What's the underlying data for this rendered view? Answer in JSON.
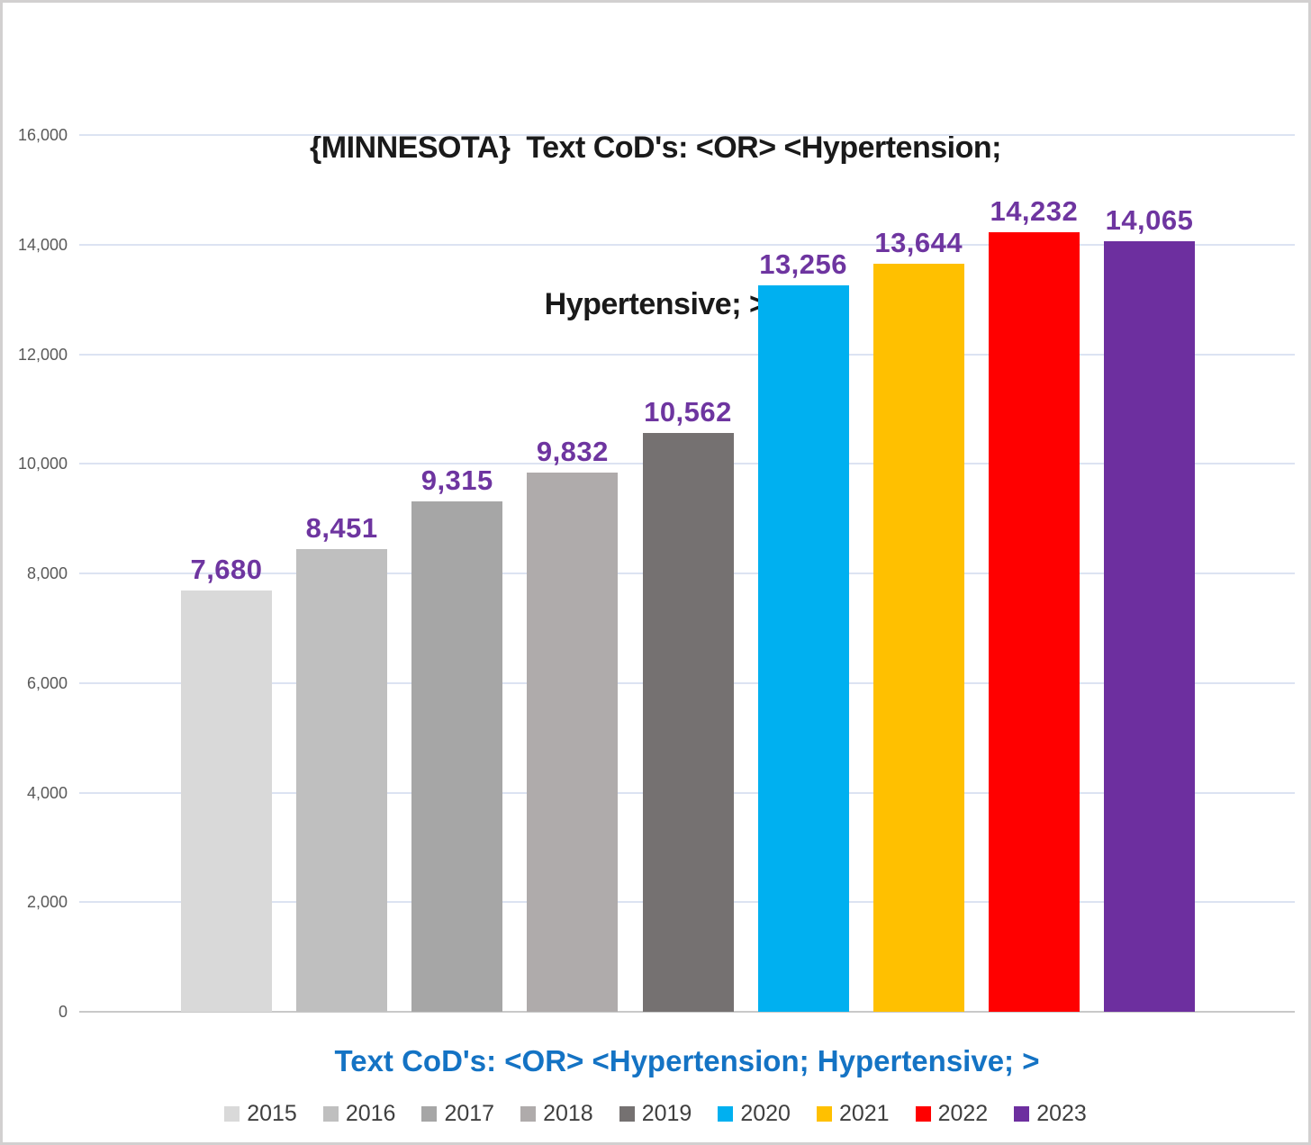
{
  "page": {
    "background": "#ffffff",
    "border_color": "#d2d0d0"
  },
  "chart_data": {
    "type": "bar",
    "title": "{MINNESOTA}  Text CoD's: <OR> <Hypertension; Hypertensive; >",
    "title_lines": [
      "{MINNESOTA}  Text CoD's: <OR> <Hypertension;",
      "Hypertensive; >"
    ],
    "xlabel": "Text CoD's: <OR> <Hypertension; Hypertensive; >",
    "ylabel": "",
    "categories": [
      "2015",
      "2016",
      "2017",
      "2018",
      "2019",
      "2020",
      "2021",
      "2022",
      "2023"
    ],
    "values": [
      7680,
      8451,
      9315,
      9832,
      10562,
      13256,
      13644,
      14232,
      14065
    ],
    "value_labels": [
      "7,680",
      "8,451",
      "9,315",
      "9,832",
      "10,562",
      "13,256",
      "13,644",
      "14,232",
      "14,065"
    ],
    "bar_colors": [
      "#d9d9d9",
      "#bfbfbf",
      "#a6a6a6",
      "#afabab",
      "#757171",
      "#00b0f0",
      "#ffc000",
      "#ff0000",
      "#6d2f9f"
    ],
    "ylim": [
      0,
      16000
    ],
    "ytick_step": 2000,
    "ytick_labels": [
      "0",
      "2,000",
      "4,000",
      "6,000",
      "8,000",
      "10,000",
      "12,000",
      "14,000",
      "16,000"
    ],
    "grid": true,
    "legend_position": "bottom",
    "legend_labels": [
      "2015",
      "2016",
      "2017",
      "2018",
      "2019",
      "2020",
      "2021",
      "2022",
      "2023"
    ]
  },
  "colors": {
    "title_text": "#1a1a1a",
    "data_label": "#6e35a0",
    "x_label": "#1473c4",
    "gridline": "#dce3f2",
    "baseline": "#c9c9c9",
    "ytick_text": "#595959",
    "legend_text": "#3f3f3f"
  }
}
